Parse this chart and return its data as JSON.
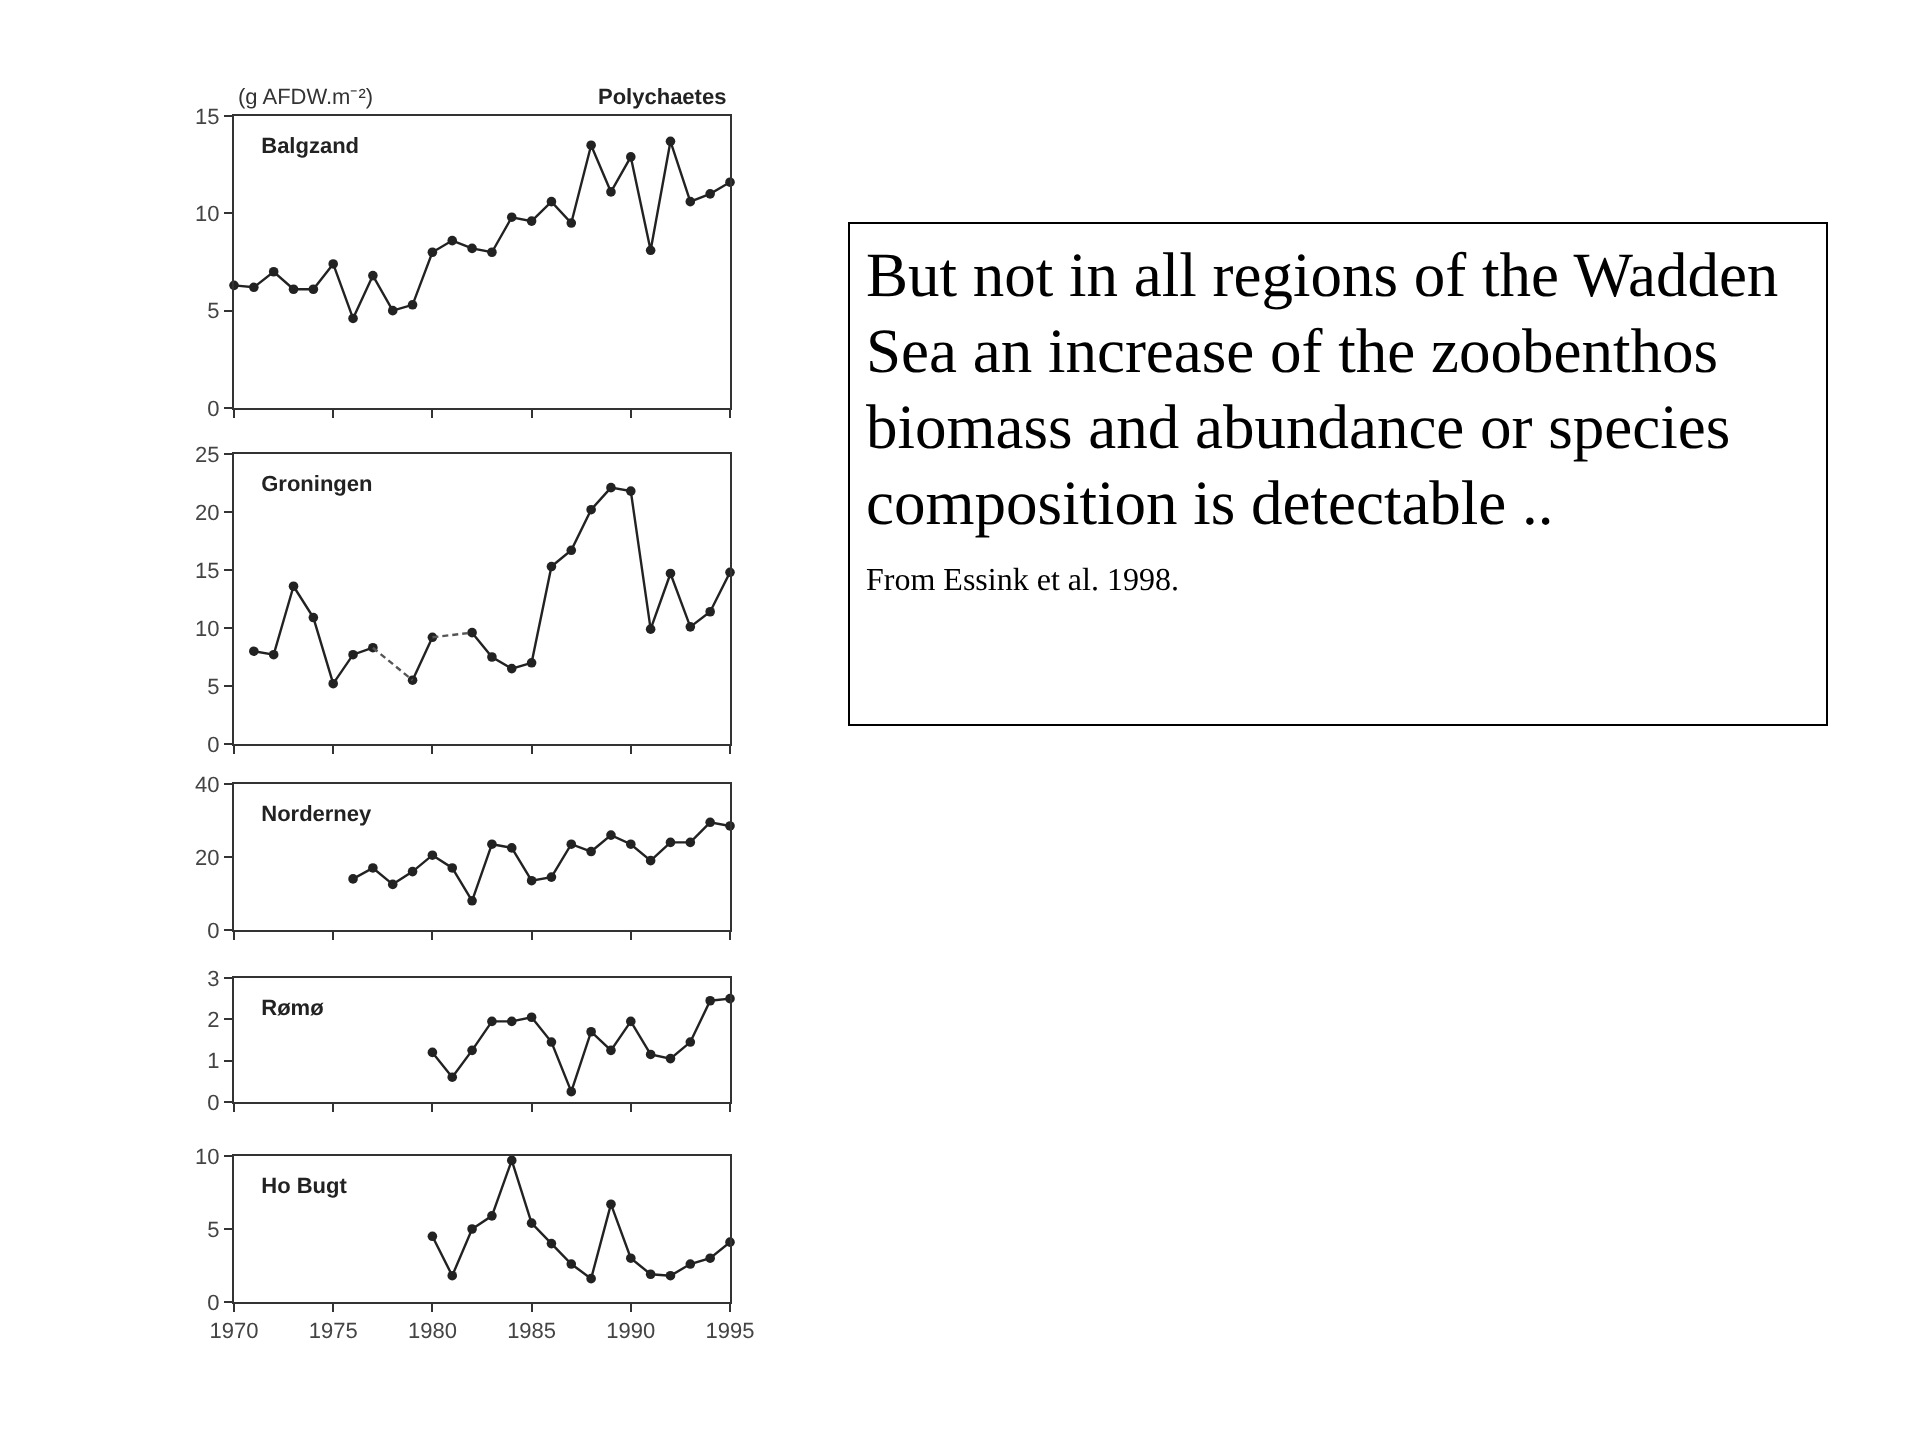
{
  "chart_data": [
    {
      "type": "line",
      "title": "Balgzand",
      "ylabel": "(g AFDW.m⁻²)",
      "annotations": [
        "Polychaetes"
      ],
      "x": [
        1970,
        1971,
        1972,
        1973,
        1974,
        1975,
        1976,
        1977,
        1978,
        1979,
        1980,
        1981,
        1982,
        1983,
        1984,
        1985,
        1986,
        1987,
        1988,
        1989,
        1990,
        1991,
        1992,
        1993,
        1994,
        1995
      ],
      "series": [
        {
          "color": "#222222",
          "values": [
            6.3,
            6.2,
            7.0,
            6.1,
            6.1,
            7.4,
            4.6,
            6.8,
            5.0,
            5.3,
            8.0,
            8.6,
            8.2,
            8.0,
            9.8,
            9.6,
            10.6,
            9.5,
            13.5,
            11.1,
            12.9,
            8.1,
            13.7,
            10.6,
            11.0,
            11.6
          ]
        }
      ],
      "xlim": [
        1970,
        1995
      ],
      "xticks": [
        1970,
        1975,
        1980,
        1985,
        1990,
        1995
      ],
      "ylim": [
        0,
        15
      ],
      "yticks": [
        0,
        5,
        10,
        15
      ],
      "tick_labels": "y",
      "marker": "circle",
      "line_style": "solid"
    },
    {
      "type": "line",
      "title": "Groningen",
      "series": [
        {
          "color": "#222222",
          "x": [
            1971,
            1972,
            1973,
            1974,
            1975,
            1976,
            1977,
            1978,
            1979,
            1980,
            1981,
            1982,
            1983,
            1984,
            1985,
            1986,
            1987,
            1988,
            1989,
            1990,
            1991,
            1992,
            1993,
            1994,
            1995
          ],
          "values": [
            8.0,
            7.7,
            13.6,
            10.9,
            5.2,
            7.7,
            8.3,
            null,
            5.5,
            9.2,
            null,
            9.6,
            7.5,
            6.5,
            7.0,
            15.3,
            16.7,
            20.2,
            22.1,
            21.8,
            9.9,
            14.7,
            10.1,
            11.4,
            14.8
          ]
        },
        {
          "color": "#555555",
          "x": [
            1977,
            1979,
            null,
            1980,
            1982
          ],
          "values": [
            8.3,
            5.5,
            null,
            9.2,
            9.6
          ],
          "line_style": "dashed",
          "marker": "none"
        }
      ],
      "xlim": [
        1970,
        1995
      ],
      "xticks": [
        1970,
        1975,
        1980,
        1985,
        1990,
        1995
      ],
      "ylim": [
        0,
        25
      ],
      "yticks": [
        0,
        5,
        10,
        15,
        20,
        25
      ],
      "tick_labels": "y",
      "marker": "circle",
      "line_style": "solid"
    },
    {
      "type": "line",
      "title": "Norderney",
      "x": [
        1976,
        1977,
        1978,
        1979,
        1980,
        1981,
        1982,
        1983,
        1984,
        1985,
        1986,
        1987,
        1988,
        1989,
        1990,
        1991,
        1992,
        1993,
        1994,
        1995
      ],
      "series": [
        {
          "color": "#222222",
          "values": [
            14,
            17,
            12.5,
            16,
            20.5,
            17,
            8,
            23.5,
            22.5,
            13.5,
            14.5,
            23.5,
            21.5,
            26,
            23.5,
            19,
            24,
            24,
            29.5,
            28.5
          ]
        }
      ],
      "xlim": [
        1970,
        1995
      ],
      "xticks": [
        1970,
        1975,
        1980,
        1985,
        1990,
        1995
      ],
      "ylim": [
        0,
        40
      ],
      "yticks": [
        0,
        20,
        40
      ],
      "tick_labels": "y",
      "marker": "circle",
      "line_style": "solid"
    },
    {
      "type": "line",
      "title": "Rømø",
      "x": [
        1980,
        1981,
        1982,
        1983,
        1984,
        1985,
        1986,
        1987,
        1988,
        1989,
        1990,
        1991,
        1992,
        1993,
        1994,
        1995
      ],
      "series": [
        {
          "color": "#222222",
          "values": [
            1.2,
            0.6,
            1.25,
            1.95,
            1.95,
            2.05,
            1.45,
            0.25,
            1.7,
            1.25,
            1.95,
            1.15,
            1.05,
            1.45,
            2.45,
            2.5
          ]
        }
      ],
      "xlim": [
        1970,
        1995
      ],
      "xticks": [
        1970,
        1975,
        1980,
        1985,
        1990,
        1995
      ],
      "ylim": [
        0,
        3
      ],
      "yticks": [
        0,
        1,
        2,
        3
      ],
      "tick_labels": "y",
      "marker": "circle",
      "line_style": "solid"
    },
    {
      "type": "line",
      "title": "Ho Bugt",
      "x": [
        1980,
        1981,
        1982,
        1983,
        1984,
        1985,
        1986,
        1987,
        1988,
        1989,
        1990,
        1991,
        1992,
        1993,
        1994,
        1995
      ],
      "series": [
        {
          "color": "#222222",
          "values": [
            4.5,
            1.8,
            5.0,
            5.9,
            9.7,
            5.4,
            4.0,
            2.6,
            1.6,
            6.7,
            3.0,
            1.9,
            1.8,
            2.6,
            3.0,
            4.1
          ]
        }
      ],
      "xlim": [
        1970,
        1995
      ],
      "xticks": [
        1970,
        1975,
        1980,
        1985,
        1990,
        1995
      ],
      "ylim": [
        0,
        10
      ],
      "yticks": [
        0,
        5,
        10
      ],
      "marker": "circle",
      "line_style": "solid"
    },
    {
      "type": "other",
      "title": "But not in all regions of the Wadden Sea an increase of the zoobenthos biomass and abundance or species composition is detectable ..",
      "annotations": [
        "From Essink et al. 1998."
      ]
    }
  ]
}
